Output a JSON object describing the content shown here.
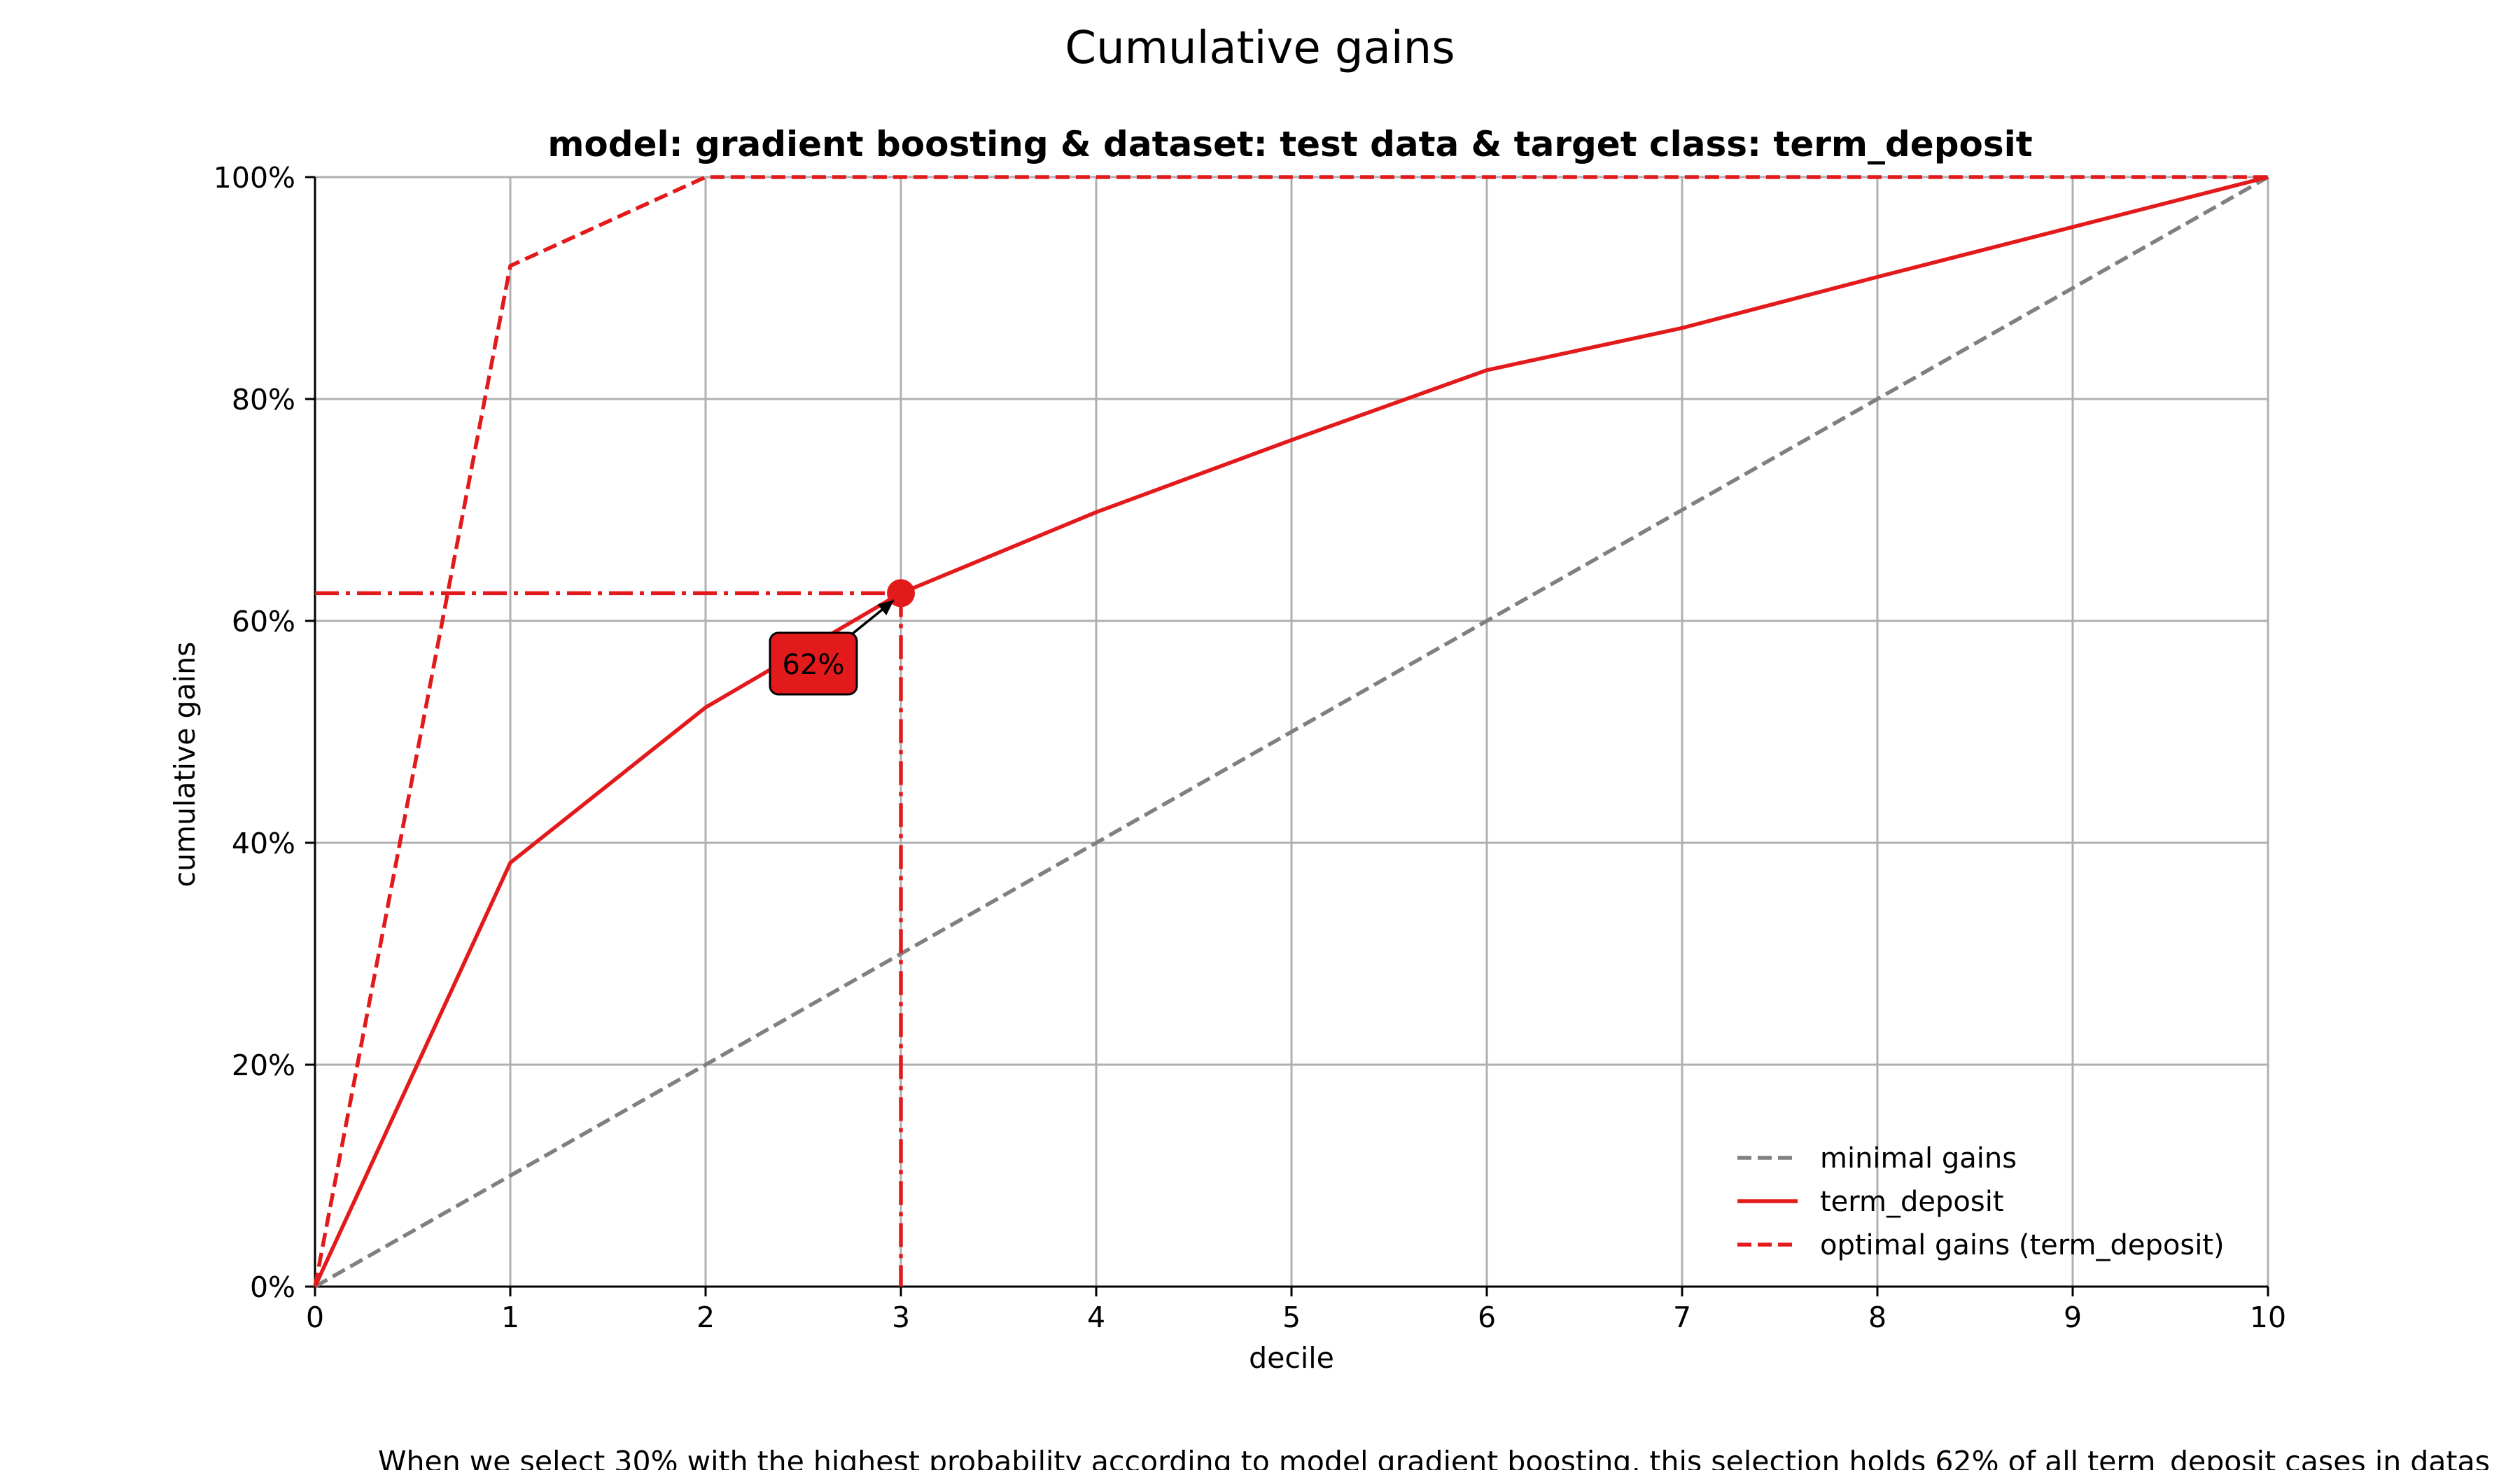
{
  "chart_data": {
    "type": "line",
    "title": "Cumulative gains",
    "subtitle": "model: gradient boosting & dataset: test data & target class: term_deposit",
    "xlabel": "decile",
    "ylabel": "cumulative gains",
    "xlim": [
      0,
      10
    ],
    "ylim": [
      0,
      100
    ],
    "x_ticks": [
      0,
      1,
      2,
      3,
      4,
      5,
      6,
      7,
      8,
      9,
      10
    ],
    "y_ticks": [
      0,
      20,
      40,
      60,
      80,
      100
    ],
    "y_tick_labels": [
      "0%",
      "20%",
      "40%",
      "60%",
      "80%",
      "100%"
    ],
    "grid": true,
    "legend_position": "lower-right",
    "colors": {
      "model": "#e31a1c",
      "minimal": "#808080",
      "grid": "#b0b0b0",
      "axis": "#000000"
    },
    "series": [
      {
        "name": "minimal gains",
        "style": "dashed",
        "color": "#808080",
        "x": [
          0,
          10
        ],
        "y": [
          0,
          100
        ]
      },
      {
        "name": "term_deposit",
        "style": "solid",
        "color": "#e31a1c",
        "x": [
          0,
          1,
          2,
          3,
          4,
          5,
          6,
          7,
          8,
          9,
          10
        ],
        "y": [
          0,
          38.2,
          52.2,
          62.5,
          69.8,
          76.3,
          82.6,
          86.4,
          91,
          95.5,
          100
        ]
      },
      {
        "name": "optimal gains (term_deposit)",
        "style": "dashed",
        "color": "#e31a1c",
        "x": [
          0,
          1,
          2,
          10
        ],
        "y": [
          0,
          92,
          100,
          100
        ]
      }
    ],
    "highlight": {
      "x": 3,
      "y": 62.5,
      "label": "62%"
    },
    "footnote": "When we select 30% with the highest probability according to model gradient boosting, this selection holds 62% of all term_deposit cases in datas"
  }
}
